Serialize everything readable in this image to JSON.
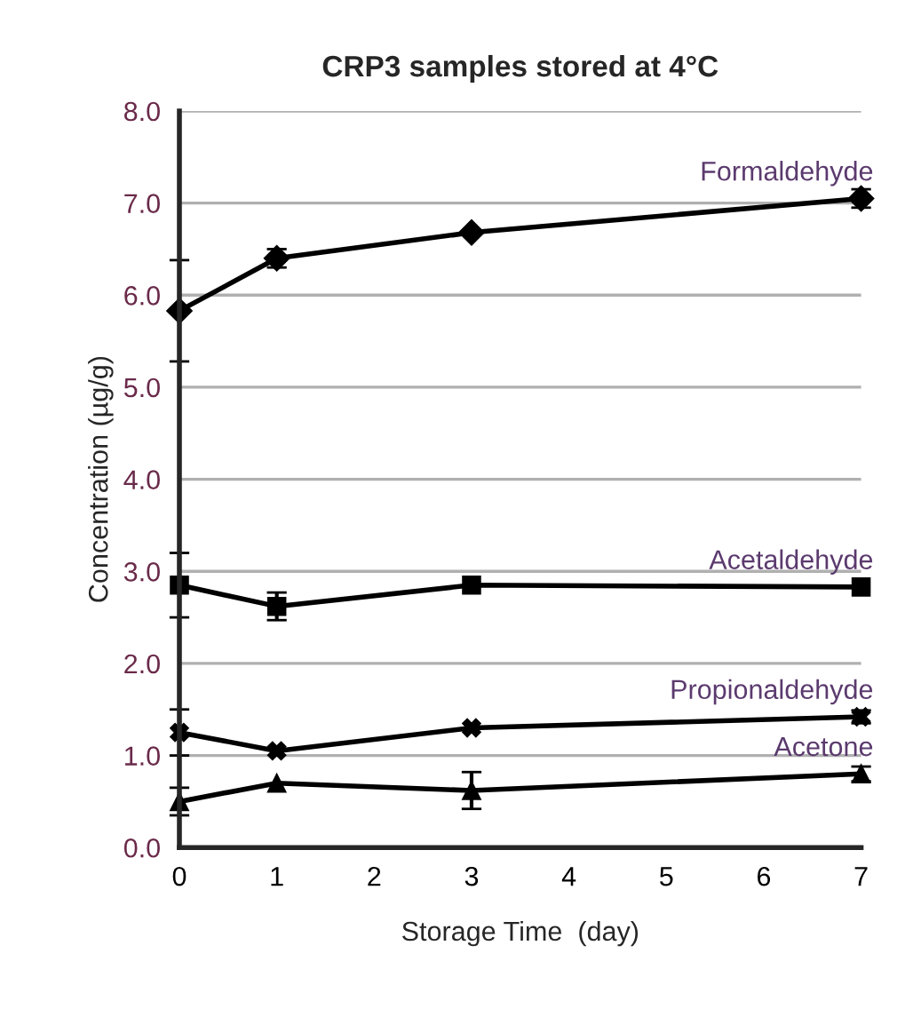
{
  "chart_data": {
    "type": "line",
    "title": "CRP3 samples stored at 4°C",
    "xlabel": "Storage Time  (day)",
    "ylabel": "Concentration (µg/g)",
    "x": [
      0,
      1,
      3,
      7
    ],
    "series": [
      {
        "name": "Formaldehyde",
        "color": "#000000",
        "marker": "diamond",
        "values": [
          5.83,
          6.4,
          6.68,
          7.05
        ],
        "errors": [
          0.55,
          0.1,
          null,
          0.1
        ]
      },
      {
        "name": "Acetaldehyde",
        "color": "#000000",
        "marker": "square",
        "values": [
          2.85,
          2.62,
          2.85,
          2.83
        ],
        "errors": [
          0.35,
          0.15,
          null,
          null
        ]
      },
      {
        "name": "Propionaldehyde",
        "color": "#000000",
        "marker": "cross",
        "values": [
          1.25,
          1.05,
          1.3,
          1.42
        ],
        "errors": [
          0.25,
          null,
          null,
          0.07
        ]
      },
      {
        "name": "Acetone",
        "color": "#000000",
        "marker": "triangle",
        "values": [
          0.5,
          0.7,
          0.62,
          0.8
        ],
        "errors": [
          0.15,
          null,
          0.2,
          0.08
        ]
      }
    ],
    "xlim": [
      0,
      7
    ],
    "xticks": [
      0,
      1,
      2,
      3,
      4,
      5,
      6,
      7
    ],
    "ylim": [
      0,
      8
    ],
    "yticks": [
      {
        "value": 0,
        "label": "0.0"
      },
      {
        "value": 1,
        "label": "1.0"
      },
      {
        "value": 2,
        "label": "2.0"
      },
      {
        "value": 3,
        "label": "3.0"
      },
      {
        "value": 4,
        "label": "4.0"
      },
      {
        "value": 5,
        "label": "5.0"
      },
      {
        "value": 6,
        "label": "6.0"
      },
      {
        "value": 7,
        "label": "7.0"
      },
      {
        "value": 8,
        "label": "8.0"
      }
    ],
    "grid": "y",
    "line_style": "solid",
    "legend": false
  }
}
